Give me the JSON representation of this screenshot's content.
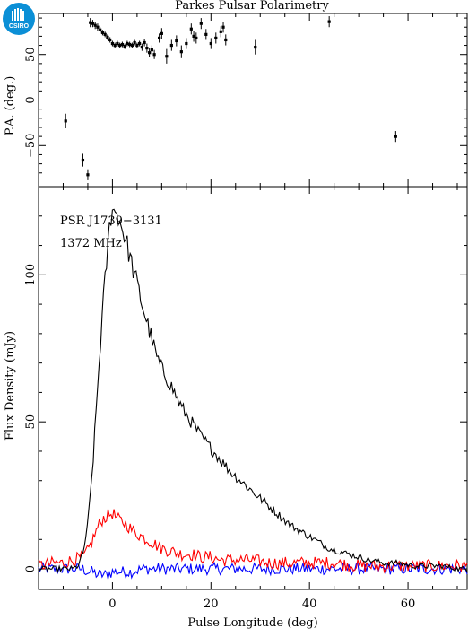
{
  "title": "Parkes Pulsar Polarimetry",
  "logo_text": "CSIRO",
  "annotations": {
    "pulsar": "PSR J1739−3131",
    "frequency": "1372 MHz"
  },
  "colors": {
    "total_intensity": "#000000",
    "linear_polarization": "#ff0000",
    "circular_polarization": "#0000ff",
    "logo": "#0b8fd6"
  },
  "chart_data": [
    {
      "type": "scatter",
      "panel": "position-angle",
      "ylabel": "P.A. (deg.)",
      "xlim": [
        -15,
        72
      ],
      "ylim": [
        -95,
        95
      ],
      "yticks": [
        -50,
        0,
        50
      ],
      "grid": false,
      "points": [
        {
          "x": -9.5,
          "y": -23,
          "err": 8
        },
        {
          "x": -6,
          "y": -66,
          "err": 7
        },
        {
          "x": -5,
          "y": -82,
          "err": 6
        },
        {
          "x": -4.5,
          "y": 85,
          "err": 5
        },
        {
          "x": -4,
          "y": 84,
          "err": 4
        },
        {
          "x": -3.5,
          "y": 82,
          "err": 4
        },
        {
          "x": -3,
          "y": 80,
          "err": 4
        },
        {
          "x": -2.5,
          "y": 77,
          "err": 3
        },
        {
          "x": -2,
          "y": 74,
          "err": 3
        },
        {
          "x": -1.5,
          "y": 72,
          "err": 3
        },
        {
          "x": -1,
          "y": 69,
          "err": 3
        },
        {
          "x": -0.5,
          "y": 66,
          "err": 3
        },
        {
          "x": 0,
          "y": 62,
          "err": 3
        },
        {
          "x": 0.5,
          "y": 60,
          "err": 3
        },
        {
          "x": 1,
          "y": 62,
          "err": 3
        },
        {
          "x": 1.5,
          "y": 60,
          "err": 3
        },
        {
          "x": 2,
          "y": 61,
          "err": 3
        },
        {
          "x": 2.5,
          "y": 59,
          "err": 3
        },
        {
          "x": 3,
          "y": 62,
          "err": 3
        },
        {
          "x": 3.5,
          "y": 61,
          "err": 3
        },
        {
          "x": 4,
          "y": 60,
          "err": 3
        },
        {
          "x": 4.5,
          "y": 63,
          "err": 3
        },
        {
          "x": 5,
          "y": 60,
          "err": 3
        },
        {
          "x": 5.5,
          "y": 62,
          "err": 3
        },
        {
          "x": 6,
          "y": 58,
          "err": 4
        },
        {
          "x": 6.5,
          "y": 63,
          "err": 4
        },
        {
          "x": 7,
          "y": 57,
          "err": 5
        },
        {
          "x": 7.5,
          "y": 52,
          "err": 5
        },
        {
          "x": 8,
          "y": 55,
          "err": 5
        },
        {
          "x": 8.5,
          "y": 50,
          "err": 5
        },
        {
          "x": 9.5,
          "y": 68,
          "err": 5
        },
        {
          "x": 10,
          "y": 73,
          "err": 6
        },
        {
          "x": 11,
          "y": 48,
          "err": 8
        },
        {
          "x": 12,
          "y": 60,
          "err": 6
        },
        {
          "x": 13,
          "y": 65,
          "err": 6
        },
        {
          "x": 14,
          "y": 53,
          "err": 7
        },
        {
          "x": 15,
          "y": 62,
          "err": 6
        },
        {
          "x": 16,
          "y": 78,
          "err": 6
        },
        {
          "x": 16.5,
          "y": 70,
          "err": 6
        },
        {
          "x": 17,
          "y": 68,
          "err": 6
        },
        {
          "x": 18,
          "y": 84,
          "err": 6
        },
        {
          "x": 19,
          "y": 72,
          "err": 6
        },
        {
          "x": 20,
          "y": 62,
          "err": 6
        },
        {
          "x": 21,
          "y": 68,
          "err": 6
        },
        {
          "x": 22,
          "y": 75,
          "err": 6
        },
        {
          "x": 22.5,
          "y": 80,
          "err": 6
        },
        {
          "x": 23,
          "y": 66,
          "err": 6
        },
        {
          "x": 29,
          "y": 58,
          "err": 8
        },
        {
          "x": 44,
          "y": 86,
          "err": 6
        },
        {
          "x": 57.5,
          "y": -40,
          "err": 6
        }
      ]
    },
    {
      "type": "line",
      "panel": "flux-profile",
      "xlabel": "Pulse Longitude (deg)",
      "ylabel": "Flux Density (mJy)",
      "xlim": [
        -15,
        72
      ],
      "ylim": [
        -7,
        130
      ],
      "xticks": [
        0,
        20,
        40,
        60
      ],
      "yticks": [
        0,
        50,
        100
      ],
      "grid": false,
      "series": [
        {
          "key": "total_intensity",
          "x": [
            -15,
            -10,
            -8,
            -7,
            -6,
            -5,
            -4,
            -3,
            -2,
            -1,
            -0.5,
            0,
            0.5,
            1,
            1.5,
            2,
            3,
            4,
            5,
            6,
            7,
            8,
            9,
            10,
            12,
            14,
            16,
            18,
            20,
            22,
            24,
            26,
            28,
            30,
            32,
            34,
            36,
            38,
            40,
            42,
            44,
            46,
            48,
            50,
            52,
            55,
            58,
            61,
            64,
            67,
            70,
            72
          ],
          "y": [
            0,
            0,
            0,
            1,
            5,
            15,
            35,
            62,
            88,
            108,
            118,
            124,
            120,
            122,
            118,
            116,
            110,
            103,
            97,
            90,
            84,
            78,
            72,
            68,
            62,
            55,
            50,
            45,
            41,
            37,
            33,
            30,
            27,
            24,
            21,
            18,
            15,
            13,
            11,
            9,
            7,
            6,
            5,
            4,
            3,
            2,
            2,
            1,
            1,
            1,
            0,
            0
          ]
        },
        {
          "key": "linear_polarization",
          "x": [
            -15,
            -12,
            -10,
            -8,
            -6,
            -5,
            -4,
            -3,
            -2,
            -1,
            0,
            1,
            2,
            3,
            4,
            5,
            6,
            7,
            8,
            9,
            10,
            12,
            14,
            16,
            18,
            20,
            22,
            25,
            28,
            32,
            36,
            40,
            45,
            50,
            55,
            60,
            65,
            70,
            72
          ],
          "y": [
            1,
            2,
            2,
            3,
            4,
            6,
            10,
            14,
            17,
            18,
            19,
            17,
            16,
            15,
            13,
            12,
            11,
            10,
            9,
            8,
            7,
            6,
            5,
            5,
            4,
            4,
            3,
            3,
            3,
            2,
            2,
            2,
            2,
            1,
            1,
            1,
            1,
            1,
            1
          ]
        },
        {
          "key": "circular_polarization",
          "x": [
            -15,
            -12,
            -10,
            -8,
            -6,
            -5,
            -4,
            -3,
            -2,
            -1,
            0,
            2,
            4,
            6,
            8,
            10,
            15,
            20,
            25,
            30,
            40,
            50,
            60,
            70,
            72
          ],
          "y": [
            0,
            0,
            0,
            0,
            0,
            -1,
            -1,
            -2,
            -2,
            -2,
            -1,
            -1,
            -1,
            0,
            0,
            0,
            0,
            0,
            0,
            0,
            0,
            0,
            0,
            0,
            0
          ]
        }
      ]
    }
  ]
}
